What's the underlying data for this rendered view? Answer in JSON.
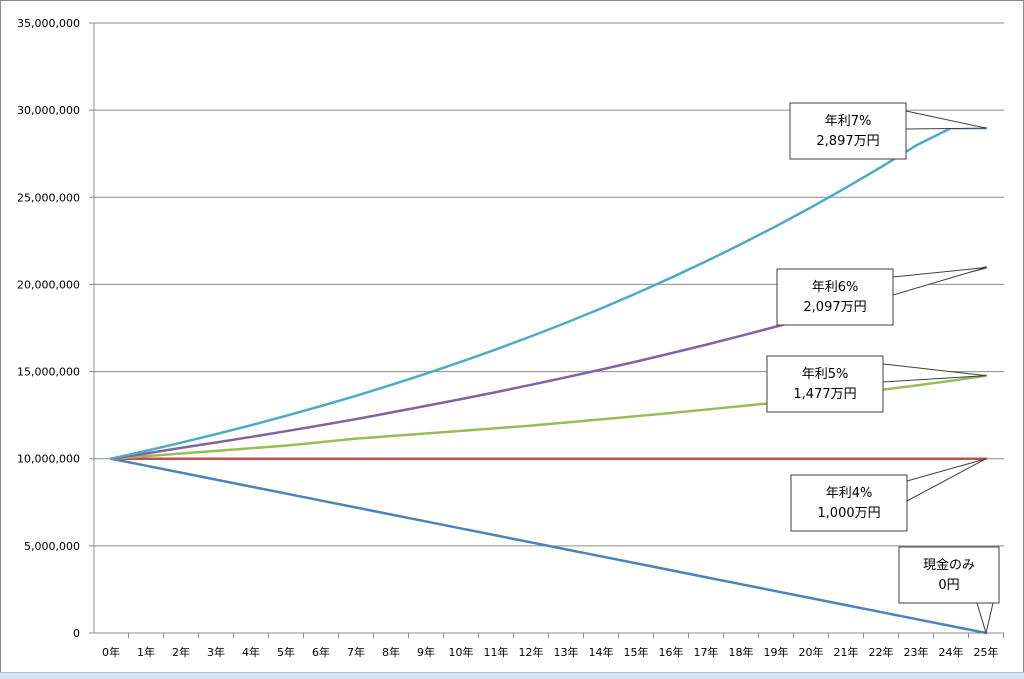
{
  "chart_data": {
    "type": "line",
    "categories": [
      "0年",
      "1年",
      "2年",
      "3年",
      "4年",
      "5年",
      "6年",
      "7年",
      "8年",
      "9年",
      "10年",
      "11年",
      "12年",
      "13年",
      "14年",
      "15年",
      "16年",
      "17年",
      "18年",
      "19年",
      "20年",
      "21年",
      "22年",
      "23年",
      "24年",
      "25年"
    ],
    "y_ticks": [
      "0",
      "5,000,000",
      "10,000,000",
      "15,000,000",
      "20,000,000",
      "25,000,000",
      "30,000,000",
      "35,000,000"
    ],
    "ylim": [
      0,
      35000000
    ],
    "grid": true,
    "series": [
      {
        "id": "cash",
        "color": "#4f81bd",
        "values": [
          10000000,
          9600000,
          9200000,
          8800000,
          8400000,
          8000000,
          7600000,
          7200000,
          6800000,
          6400000,
          6000000,
          5600000,
          5200000,
          4800000,
          4400000,
          4000000,
          3600000,
          3200000,
          2800000,
          2400000,
          2000000,
          1600000,
          1200000,
          800000,
          400000,
          0
        ]
      },
      {
        "id": "rate4",
        "color": "#c0504d",
        "values": [
          10000000,
          10000000,
          10000000,
          10000000,
          10000000,
          10000000,
          10000000,
          10000000,
          10000000,
          10000000,
          10000000,
          10000000,
          10000000,
          10000000,
          10000000,
          10000000,
          10000000,
          10000000,
          10000000,
          10000000,
          10000000,
          10000000,
          10000000,
          10000000,
          10000000,
          10000000
        ]
      },
      {
        "id": "rate5",
        "color": "#9bbb59",
        "values": [
          10000000,
          10150000,
          10300000,
          10450000,
          10600000,
          10750000,
          10950000,
          11150000,
          11300000,
          11450000,
          11600000,
          11750000,
          11900000,
          12080000,
          12260000,
          12440000,
          12620000,
          12820000,
          13020000,
          13220000,
          13450000,
          13700000,
          13950000,
          14200000,
          14470000,
          14770000
        ]
      },
      {
        "id": "rate6",
        "color": "#8064a2",
        "values": [
          10000000,
          10300000,
          10620000,
          10930000,
          11250000,
          11580000,
          11920000,
          12270000,
          12650000,
          13030000,
          13420000,
          13820000,
          14240000,
          14670000,
          15110000,
          15570000,
          16050000,
          16540000,
          17050000,
          17580000,
          18130000,
          18700000,
          19280000,
          19870000,
          20480000,
          20970000
        ]
      },
      {
        "id": "rate7",
        "color": "#4bacc6",
        "values": [
          10000000,
          10450000,
          10920000,
          11410000,
          11920000,
          12460000,
          13020000,
          13610000,
          14230000,
          14880000,
          15560000,
          16270000,
          17020000,
          17800000,
          18620000,
          19480000,
          20380000,
          21320000,
          22310000,
          23340000,
          24420000,
          25550000,
          26730000,
          27970000,
          28970000,
          28970000
        ]
      }
    ],
    "annotations": [
      {
        "line1": "年利7%",
        "line2": "2,897万円"
      },
      {
        "line1": "年利6%",
        "line2": "2,097万円"
      },
      {
        "line1": "年利5%",
        "line2": "1,477万円"
      },
      {
        "line1": "年利4%",
        "line2": "1,000万円"
      },
      {
        "line1": "現金のみ",
        "line2": "0円"
      }
    ]
  }
}
